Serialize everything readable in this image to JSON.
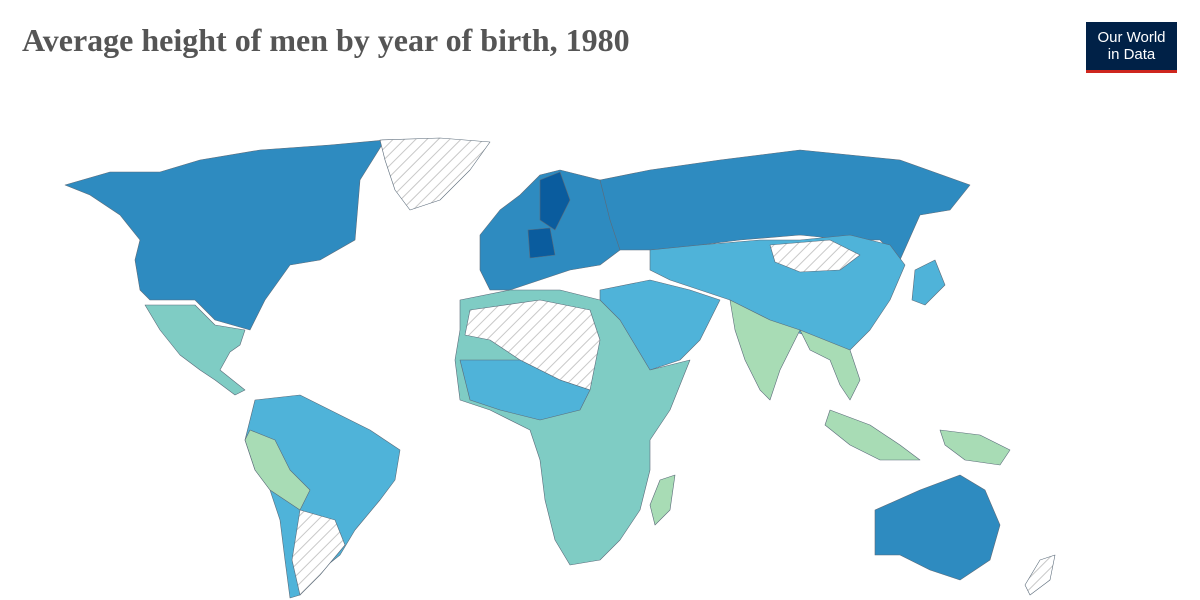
{
  "header": {
    "title": "Average height of men by year of birth, 1980"
  },
  "logo": {
    "line1": "Our World",
    "line2": "in Data"
  }
}
